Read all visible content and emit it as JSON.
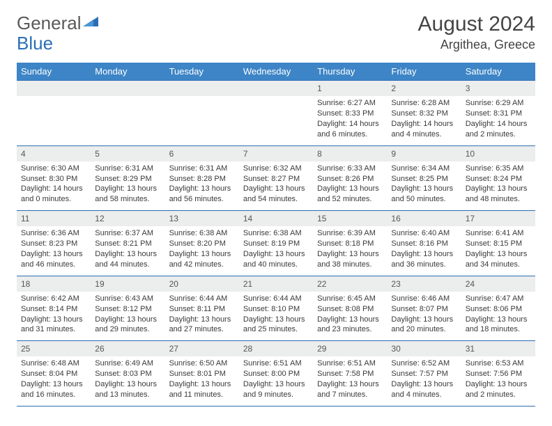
{
  "brand": {
    "part1": "General",
    "part2": "Blue"
  },
  "title": "August 2024",
  "location": "Argithea, Greece",
  "colors": {
    "header_bg": "#3d85c6",
    "border": "#2a6fb5",
    "daynum_bg": "#eceded",
    "text": "#3a3a3a",
    "title": "#444444"
  },
  "dow": [
    "Sunday",
    "Monday",
    "Tuesday",
    "Wednesday",
    "Thursday",
    "Friday",
    "Saturday"
  ],
  "weeks": [
    [
      null,
      null,
      null,
      null,
      {
        "n": "1",
        "sr": "Sunrise: 6:27 AM",
        "ss": "Sunset: 8:33 PM",
        "dl1": "Daylight: 14 hours",
        "dl2": "and 6 minutes."
      },
      {
        "n": "2",
        "sr": "Sunrise: 6:28 AM",
        "ss": "Sunset: 8:32 PM",
        "dl1": "Daylight: 14 hours",
        "dl2": "and 4 minutes."
      },
      {
        "n": "3",
        "sr": "Sunrise: 6:29 AM",
        "ss": "Sunset: 8:31 PM",
        "dl1": "Daylight: 14 hours",
        "dl2": "and 2 minutes."
      }
    ],
    [
      {
        "n": "4",
        "sr": "Sunrise: 6:30 AM",
        "ss": "Sunset: 8:30 PM",
        "dl1": "Daylight: 14 hours",
        "dl2": "and 0 minutes."
      },
      {
        "n": "5",
        "sr": "Sunrise: 6:31 AM",
        "ss": "Sunset: 8:29 PM",
        "dl1": "Daylight: 13 hours",
        "dl2": "and 58 minutes."
      },
      {
        "n": "6",
        "sr": "Sunrise: 6:31 AM",
        "ss": "Sunset: 8:28 PM",
        "dl1": "Daylight: 13 hours",
        "dl2": "and 56 minutes."
      },
      {
        "n": "7",
        "sr": "Sunrise: 6:32 AM",
        "ss": "Sunset: 8:27 PM",
        "dl1": "Daylight: 13 hours",
        "dl2": "and 54 minutes."
      },
      {
        "n": "8",
        "sr": "Sunrise: 6:33 AM",
        "ss": "Sunset: 8:26 PM",
        "dl1": "Daylight: 13 hours",
        "dl2": "and 52 minutes."
      },
      {
        "n": "9",
        "sr": "Sunrise: 6:34 AM",
        "ss": "Sunset: 8:25 PM",
        "dl1": "Daylight: 13 hours",
        "dl2": "and 50 minutes."
      },
      {
        "n": "10",
        "sr": "Sunrise: 6:35 AM",
        "ss": "Sunset: 8:24 PM",
        "dl1": "Daylight: 13 hours",
        "dl2": "and 48 minutes."
      }
    ],
    [
      {
        "n": "11",
        "sr": "Sunrise: 6:36 AM",
        "ss": "Sunset: 8:23 PM",
        "dl1": "Daylight: 13 hours",
        "dl2": "and 46 minutes."
      },
      {
        "n": "12",
        "sr": "Sunrise: 6:37 AM",
        "ss": "Sunset: 8:21 PM",
        "dl1": "Daylight: 13 hours",
        "dl2": "and 44 minutes."
      },
      {
        "n": "13",
        "sr": "Sunrise: 6:38 AM",
        "ss": "Sunset: 8:20 PM",
        "dl1": "Daylight: 13 hours",
        "dl2": "and 42 minutes."
      },
      {
        "n": "14",
        "sr": "Sunrise: 6:38 AM",
        "ss": "Sunset: 8:19 PM",
        "dl1": "Daylight: 13 hours",
        "dl2": "and 40 minutes."
      },
      {
        "n": "15",
        "sr": "Sunrise: 6:39 AM",
        "ss": "Sunset: 8:18 PM",
        "dl1": "Daylight: 13 hours",
        "dl2": "and 38 minutes."
      },
      {
        "n": "16",
        "sr": "Sunrise: 6:40 AM",
        "ss": "Sunset: 8:16 PM",
        "dl1": "Daylight: 13 hours",
        "dl2": "and 36 minutes."
      },
      {
        "n": "17",
        "sr": "Sunrise: 6:41 AM",
        "ss": "Sunset: 8:15 PM",
        "dl1": "Daylight: 13 hours",
        "dl2": "and 34 minutes."
      }
    ],
    [
      {
        "n": "18",
        "sr": "Sunrise: 6:42 AM",
        "ss": "Sunset: 8:14 PM",
        "dl1": "Daylight: 13 hours",
        "dl2": "and 31 minutes."
      },
      {
        "n": "19",
        "sr": "Sunrise: 6:43 AM",
        "ss": "Sunset: 8:12 PM",
        "dl1": "Daylight: 13 hours",
        "dl2": "and 29 minutes."
      },
      {
        "n": "20",
        "sr": "Sunrise: 6:44 AM",
        "ss": "Sunset: 8:11 PM",
        "dl1": "Daylight: 13 hours",
        "dl2": "and 27 minutes."
      },
      {
        "n": "21",
        "sr": "Sunrise: 6:44 AM",
        "ss": "Sunset: 8:10 PM",
        "dl1": "Daylight: 13 hours",
        "dl2": "and 25 minutes."
      },
      {
        "n": "22",
        "sr": "Sunrise: 6:45 AM",
        "ss": "Sunset: 8:08 PM",
        "dl1": "Daylight: 13 hours",
        "dl2": "and 23 minutes."
      },
      {
        "n": "23",
        "sr": "Sunrise: 6:46 AM",
        "ss": "Sunset: 8:07 PM",
        "dl1": "Daylight: 13 hours",
        "dl2": "and 20 minutes."
      },
      {
        "n": "24",
        "sr": "Sunrise: 6:47 AM",
        "ss": "Sunset: 8:06 PM",
        "dl1": "Daylight: 13 hours",
        "dl2": "and 18 minutes."
      }
    ],
    [
      {
        "n": "25",
        "sr": "Sunrise: 6:48 AM",
        "ss": "Sunset: 8:04 PM",
        "dl1": "Daylight: 13 hours",
        "dl2": "and 16 minutes."
      },
      {
        "n": "26",
        "sr": "Sunrise: 6:49 AM",
        "ss": "Sunset: 8:03 PM",
        "dl1": "Daylight: 13 hours",
        "dl2": "and 13 minutes."
      },
      {
        "n": "27",
        "sr": "Sunrise: 6:50 AM",
        "ss": "Sunset: 8:01 PM",
        "dl1": "Daylight: 13 hours",
        "dl2": "and 11 minutes."
      },
      {
        "n": "28",
        "sr": "Sunrise: 6:51 AM",
        "ss": "Sunset: 8:00 PM",
        "dl1": "Daylight: 13 hours",
        "dl2": "and 9 minutes."
      },
      {
        "n": "29",
        "sr": "Sunrise: 6:51 AM",
        "ss": "Sunset: 7:58 PM",
        "dl1": "Daylight: 13 hours",
        "dl2": "and 7 minutes."
      },
      {
        "n": "30",
        "sr": "Sunrise: 6:52 AM",
        "ss": "Sunset: 7:57 PM",
        "dl1": "Daylight: 13 hours",
        "dl2": "and 4 minutes."
      },
      {
        "n": "31",
        "sr": "Sunrise: 6:53 AM",
        "ss": "Sunset: 7:56 PM",
        "dl1": "Daylight: 13 hours",
        "dl2": "and 2 minutes."
      }
    ]
  ]
}
